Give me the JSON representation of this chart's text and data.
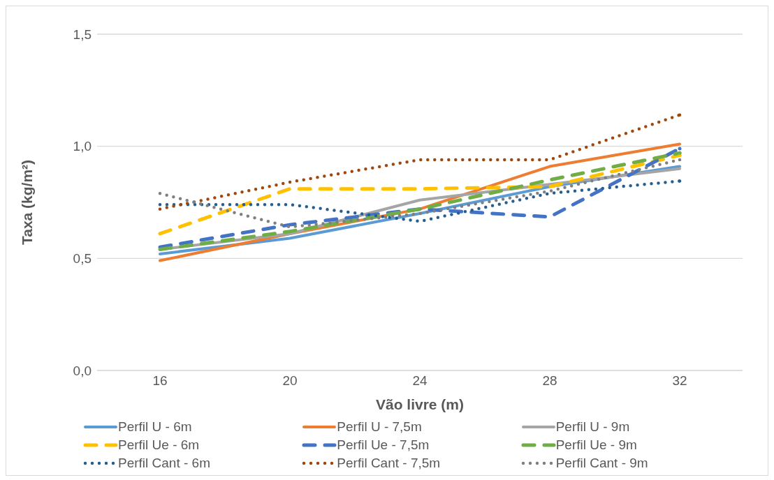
{
  "chart_data": {
    "type": "line",
    "xlabel": "Vão livre (m)",
    "ylabel": "Taxa (kg/m²)",
    "categories": [
      "16",
      "20",
      "24",
      "28",
      "32"
    ],
    "ylim": [
      0,
      1.5
    ],
    "yticks": [
      {
        "value": 0,
        "label": "0,0"
      },
      {
        "value": 0.5,
        "label": "0,5"
      },
      {
        "value": 1,
        "label": "1,0"
      },
      {
        "value": 1.5,
        "label": "1,5"
      }
    ],
    "grid": "y",
    "legend": "bottom",
    "marker": "none",
    "series": [
      {
        "name": "Perfil U - 6m",
        "color": "#5b9bd5",
        "line_style": "solid",
        "values": [
          0.52,
          0.59,
          0.7,
          0.82,
          0.91
        ]
      },
      {
        "name": "Perfil U - 7,5m",
        "color": "#ed7d31",
        "line_style": "solid",
        "values": [
          0.49,
          0.61,
          0.72,
          0.91,
          1.01
        ]
      },
      {
        "name": "Perfil U - 9m",
        "color": "#a5a5a5",
        "line_style": "solid",
        "values": [
          0.54,
          0.61,
          0.76,
          0.83,
          0.9
        ]
      },
      {
        "name": "Perfil Ue - 6m",
        "color": "#ffc000",
        "line_style": "dashed",
        "values": [
          0.61,
          0.81,
          0.81,
          0.82,
          0.96
        ]
      },
      {
        "name": "Perfil Ue - 7,5m",
        "color": "#4472c4",
        "line_style": "dashed",
        "values": [
          0.55,
          0.65,
          0.72,
          0.685,
          0.99
        ]
      },
      {
        "name": "Perfil Ue - 9m",
        "color": "#70ad47",
        "line_style": "dashed",
        "values": [
          0.54,
          0.62,
          0.72,
          0.85,
          0.97
        ]
      },
      {
        "name": "Perfil Cant - 6m",
        "color": "#255e91",
        "line_style": "dotted",
        "values": [
          0.74,
          0.74,
          0.665,
          0.79,
          0.845
        ]
      },
      {
        "name": "Perfil Cant - 7,5m",
        "color": "#9e480e",
        "line_style": "dotted",
        "values": [
          0.72,
          0.84,
          0.94,
          0.94,
          1.14
        ]
      },
      {
        "name": "Perfil Cant - 9m",
        "color": "#7f7f7f",
        "line_style": "dotted",
        "values": [
          0.79,
          0.64,
          0.7,
          0.8,
          0.94
        ]
      }
    ]
  }
}
